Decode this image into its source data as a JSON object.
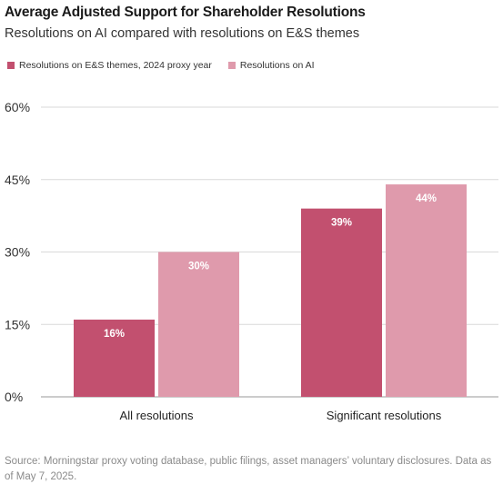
{
  "chart_data": {
    "type": "bar",
    "title": "Average Adjusted Support for Shareholder Resolutions",
    "subtitle": "Resolutions on AI compared with resolutions on E&S themes",
    "categories": [
      "All resolutions",
      "Significant resolutions"
    ],
    "series": [
      {
        "name": "Resolutions on E&S themes, 2024 proxy year",
        "values": [
          16,
          39
        ],
        "color": "#c2506f",
        "labels": [
          "16%",
          "39%"
        ]
      },
      {
        "name": "Resolutions on AI",
        "values": [
          30,
          44
        ],
        "color": "#df9aac",
        "labels": [
          "30%",
          "44%"
        ]
      }
    ],
    "ylim": [
      0,
      60
    ],
    "yticks": [
      0,
      15,
      30,
      45,
      60
    ],
    "ytick_labels": [
      "0%",
      "15%",
      "30%",
      "45%",
      "60%"
    ],
    "grid": true,
    "legend_position": "top-left"
  },
  "source": "Source: Morningstar proxy voting database, public filings, asset managers’ voluntary disclosures. Data as of May 7, 2025."
}
